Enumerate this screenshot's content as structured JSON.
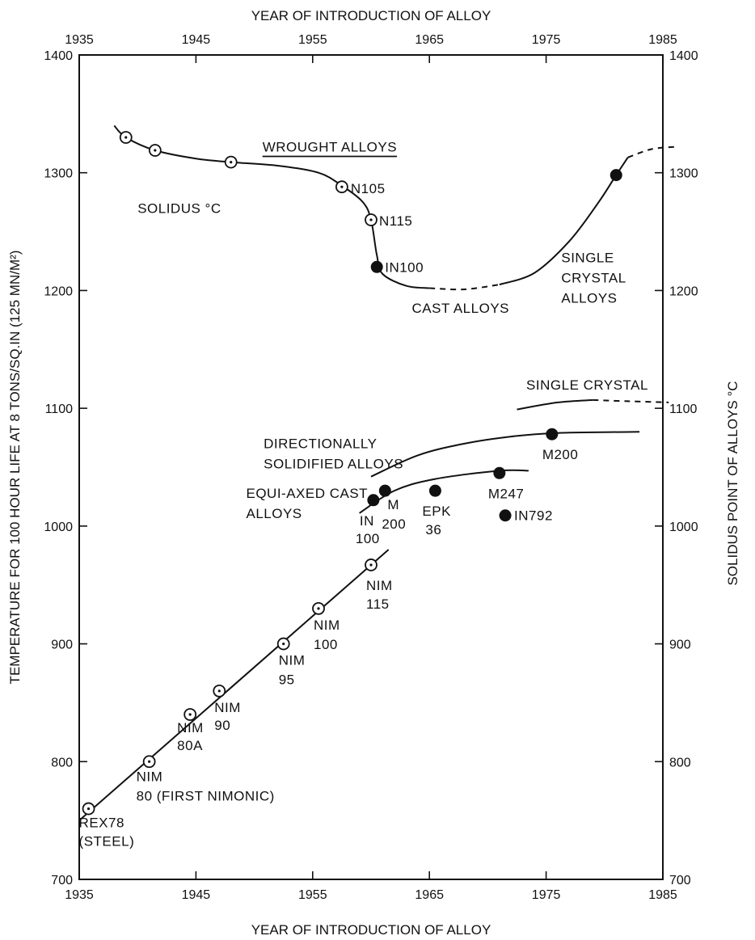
{
  "chart_data": {
    "type": "scatter",
    "title": "",
    "xlabel": "YEAR OF INTRODUCTION OF ALLOY",
    "xlabel_top": "YEAR OF INTRODUCTION OF ALLOY",
    "ylabel": "TEMPERATURE FOR 100 HOUR LIFE AT 8 TONS/SQ.IN (125 MN/M²)",
    "ylabel_right": "SOLIDUS POINT OF ALLOYS °C",
    "xlim": [
      1935,
      1985
    ],
    "ylim": [
      700,
      1400
    ],
    "x_ticks": [
      1935,
      1945,
      1955,
      1965,
      1975,
      1985
    ],
    "y_ticks": [
      700,
      800,
      900,
      1000,
      1100,
      1200,
      1300,
      1400
    ],
    "grid": false,
    "series": [
      {
        "name": "WROUGHT ALLOYS",
        "marker": "open",
        "points": [
          {
            "x": 1939,
            "y": 1330,
            "label": ""
          },
          {
            "x": 1941.5,
            "y": 1319,
            "label": ""
          },
          {
            "x": 1948,
            "y": 1309,
            "label": ""
          },
          {
            "x": 1957.5,
            "y": 1288,
            "label": "N105"
          },
          {
            "x": 1960,
            "y": 1260,
            "label": "N115"
          }
        ]
      },
      {
        "name": "CAST ALLOYS",
        "marker": "filled",
        "points": [
          {
            "x": 1960.5,
            "y": 1220,
            "label": "IN100"
          },
          {
            "x": 1981,
            "y": 1298,
            "label": ""
          }
        ]
      },
      {
        "name": "NIM",
        "marker": "open",
        "points": [
          {
            "x": 1935.8,
            "y": 760,
            "label": "REX78 (STEEL)"
          },
          {
            "x": 1941,
            "y": 800,
            "label": "NIM 80 (FIRST NIMONIC)"
          },
          {
            "x": 1944.5,
            "y": 840,
            "label": "NIM 80A"
          },
          {
            "x": 1947,
            "y": 860,
            "label": "NIM 90"
          },
          {
            "x": 1952.5,
            "y": 900,
            "label": "NIM 95"
          },
          {
            "x": 1955.5,
            "y": 930,
            "label": "NIM 100"
          },
          {
            "x": 1960,
            "y": 967,
            "label": "NIM 115"
          }
        ]
      },
      {
        "name": "EQUI-AXED CAST ALLOYS",
        "marker": "filled",
        "points": [
          {
            "x": 1960.2,
            "y": 1022,
            "label": "IN 100"
          },
          {
            "x": 1961.2,
            "y": 1030,
            "label": "M 200"
          },
          {
            "x": 1965.5,
            "y": 1030,
            "label": "EPK 36"
          },
          {
            "x": 1971,
            "y": 1045,
            "label": "M247"
          },
          {
            "x": 1971.5,
            "y": 1009,
            "label": "IN792"
          }
        ]
      },
      {
        "name": "DIRECTIONALLY SOLIDIFIED ALLOYS",
        "marker": "filled",
        "points": [
          {
            "x": 1975.5,
            "y": 1078,
            "label": "M200"
          }
        ]
      }
    ],
    "curves": [
      {
        "name": "wrought",
        "style": "solid",
        "points": [
          [
            1938,
            1340
          ],
          [
            1939,
            1330
          ],
          [
            1941.5,
            1319
          ],
          [
            1945,
            1312
          ],
          [
            1948,
            1309
          ],
          [
            1952,
            1306
          ],
          [
            1955.5,
            1300
          ],
          [
            1957.5,
            1289
          ],
          [
            1959.3,
            1275
          ],
          [
            1960,
            1260
          ],
          [
            1960.5,
            1230
          ],
          [
            1961,
            1214
          ],
          [
            1963,
            1204
          ],
          [
            1965,
            1202
          ]
        ]
      },
      {
        "name": "cast-dashed",
        "style": "dashed",
        "points": [
          [
            1965,
            1202
          ],
          [
            1968,
            1201
          ],
          [
            1971,
            1205
          ]
        ]
      },
      {
        "name": "cast-rise",
        "style": "solid",
        "points": [
          [
            1971,
            1205
          ],
          [
            1974,
            1215
          ],
          [
            1977,
            1242
          ],
          [
            1979.5,
            1275
          ],
          [
            1981,
            1298
          ],
          [
            1982,
            1313
          ]
        ]
      },
      {
        "name": "single-crystal-top-dashed",
        "style": "dashed",
        "points": [
          [
            1982,
            1313
          ],
          [
            1984,
            1320
          ],
          [
            1986,
            1322
          ]
        ]
      },
      {
        "name": "nim-line",
        "style": "solid",
        "points": [
          [
            1935,
            750
          ],
          [
            1961.5,
            980
          ]
        ]
      },
      {
        "name": "equiaxed",
        "style": "solid",
        "points": [
          [
            1959,
            1011
          ],
          [
            1962,
            1030
          ],
          [
            1965.5,
            1040
          ],
          [
            1971,
            1047
          ],
          [
            1973.5,
            1047
          ]
        ]
      },
      {
        "name": "directional",
        "style": "solid",
        "points": [
          [
            1960,
            1042
          ],
          [
            1964,
            1060
          ],
          [
            1968,
            1070
          ],
          [
            1972,
            1076
          ],
          [
            1976,
            1079
          ],
          [
            1983,
            1080
          ]
        ]
      },
      {
        "name": "single-crystal",
        "style": "solid",
        "points": [
          [
            1972.5,
            1099
          ],
          [
            1976,
            1105
          ],
          [
            1979,
            1107
          ]
        ]
      },
      {
        "name": "single-crystal-dashed",
        "style": "dashed",
        "points": [
          [
            1979,
            1107
          ],
          [
            1982,
            1106
          ],
          [
            1985.5,
            1105
          ]
        ]
      }
    ],
    "annotations": [
      {
        "lines": [
          "WROUGHT ALLOYS"
        ],
        "at": [
          1950.7,
          1318
        ],
        "underline": true
      },
      {
        "lines": [
          "SOLIDUS °C"
        ],
        "at": [
          1940,
          1266
        ]
      },
      {
        "lines": [
          "CAST ALLOYS"
        ],
        "at": [
          1963.5,
          1181
        ]
      },
      {
        "lines": [
          "SINGLE",
          "CRYSTAL",
          "ALLOYS"
        ],
        "at": [
          1976.3,
          1224
        ]
      },
      {
        "lines": [
          "SINGLE CRYSTAL"
        ],
        "at": [
          1973.3,
          1116
        ]
      },
      {
        "lines": [
          "DIRECTIONALLY",
          "SOLIDIFIED ALLOYS"
        ],
        "at": [
          1950.8,
          1066
        ]
      },
      {
        "lines": [
          "EQUI-AXED CAST",
          "ALLOYS"
        ],
        "at": [
          1949.3,
          1024
        ]
      }
    ]
  }
}
